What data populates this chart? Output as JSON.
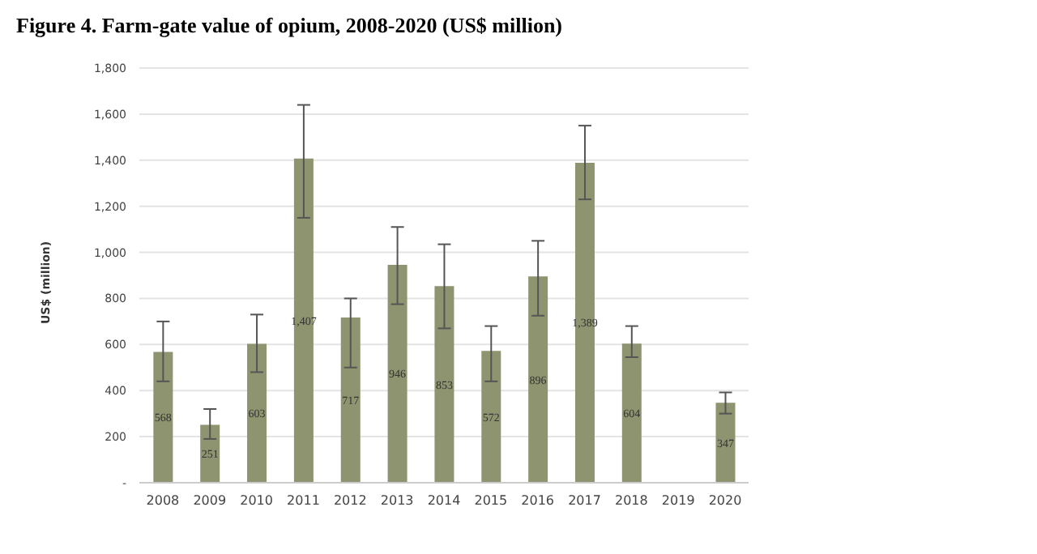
{
  "chart_data": {
    "type": "bar",
    "title": "Figure 4. Farm-gate value of opium, 2008-2020 (US$ million)",
    "ylabel": "US$ (million)",
    "categories": [
      "2008",
      "2009",
      "2010",
      "2011",
      "2012",
      "2013",
      "2014",
      "2015",
      "2016",
      "2017",
      "2018",
      "2019",
      "2020"
    ],
    "values": [
      568,
      251,
      603,
      1407,
      717,
      946,
      853,
      572,
      896,
      1389,
      604,
      null,
      347
    ],
    "value_labels": [
      "568",
      "251",
      "603",
      "1,407",
      "717",
      "946",
      "853",
      "572",
      "896",
      "1,389",
      "604",
      null,
      "347"
    ],
    "errors": [
      [
        440,
        700
      ],
      [
        190,
        320
      ],
      [
        480,
        730
      ],
      [
        1150,
        1640
      ],
      [
        500,
        800
      ],
      [
        775,
        1110
      ],
      [
        670,
        1035
      ],
      [
        440,
        680
      ],
      [
        725,
        1050
      ],
      [
        1230,
        1550
      ],
      [
        545,
        680
      ],
      null,
      [
        300,
        392
      ]
    ],
    "color": "#8e9470",
    "ylim": [
      0,
      1800
    ],
    "yticks": [
      {
        "value": 0,
        "label": "-"
      },
      {
        "value": 200,
        "label": "200"
      },
      {
        "value": 400,
        "label": "400"
      },
      {
        "value": 600,
        "label": "600"
      },
      {
        "value": 800,
        "label": "800"
      },
      {
        "value": 1000,
        "label": "1,000"
      },
      {
        "value": 1200,
        "label": "1,200"
      },
      {
        "value": 1400,
        "label": "1,400"
      },
      {
        "value": 1600,
        "label": "1,600"
      },
      {
        "value": 1800,
        "label": "1,800"
      }
    ],
    "grid": "y",
    "legend": false
  }
}
